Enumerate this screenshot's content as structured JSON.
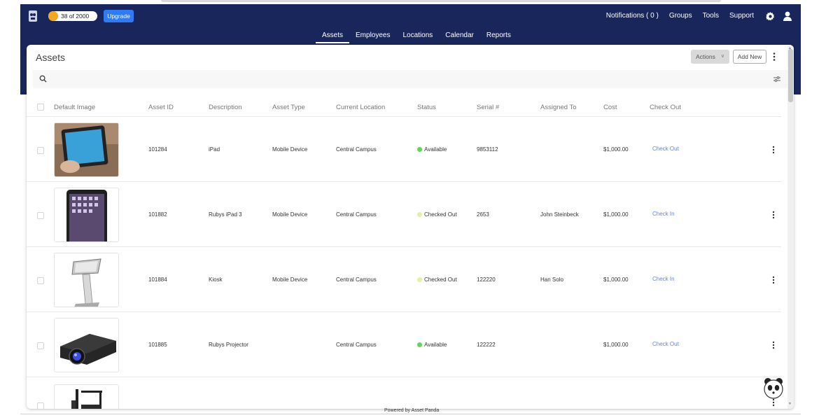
{
  "brand": {
    "counter_text": "38 of 2000",
    "counter_pct": 0.019,
    "upgrade_label": "Upgrade",
    "accent_color": "#19265c",
    "button_color": "#2f7bf5"
  },
  "top_links": {
    "notifications": "Notifications ( 0 )",
    "groups": "Groups",
    "tools": "Tools",
    "support": "Support"
  },
  "main_nav": {
    "tabs": [
      "Assets",
      "Employees",
      "Locations",
      "Calendar",
      "Reports"
    ],
    "active": "Assets"
  },
  "page": {
    "title": "Assets",
    "actions_label": "Actions",
    "add_new_label": "Add New",
    "search_placeholder": ""
  },
  "table": {
    "columns": [
      "Default Image",
      "Asset ID",
      "Description",
      "Asset Type",
      "Current Location",
      "Status",
      "Serial #",
      "Assigned To",
      "Cost",
      "Check Out"
    ],
    "rows": [
      {
        "image": "ipad-photo",
        "asset_id": "101284",
        "description": "iPad",
        "asset_type": "Mobile Device",
        "location": "Central Campus",
        "status": "Available",
        "status_color": "#5cd65c",
        "serial": "9853112",
        "assigned_to": "",
        "cost": "$1,000.00",
        "action": "Check Out"
      },
      {
        "image": "ipad-photo",
        "asset_id": "101882",
        "description": "Rubys iPad 3",
        "asset_type": "Mobile Device",
        "location": "Central Campus",
        "status": "Checked Out",
        "status_color": "#e6f0a0",
        "serial": "2653",
        "assigned_to": "John Steinbeck",
        "cost": "$1,000.00",
        "action": "Check In"
      },
      {
        "image": "kiosk-photo",
        "asset_id": "101884",
        "description": "Kiosk",
        "asset_type": "Mobile Device",
        "location": "Central Campus",
        "status": "Checked Out",
        "status_color": "#e6f0a0",
        "serial": "122220",
        "assigned_to": "Han Solo",
        "cost": "$1,000.00",
        "action": "Check In"
      },
      {
        "image": "projector-photo",
        "asset_id": "101885",
        "description": "Rubys Projector",
        "asset_type": "",
        "location": "Central Campus",
        "status": "Available",
        "status_color": "#5cd65c",
        "serial": "122222",
        "assigned_to": "",
        "cost": "$1,000.00",
        "action": "Check Out"
      }
    ]
  },
  "footer": {
    "powered_by": "Powered by Asset Panda"
  }
}
